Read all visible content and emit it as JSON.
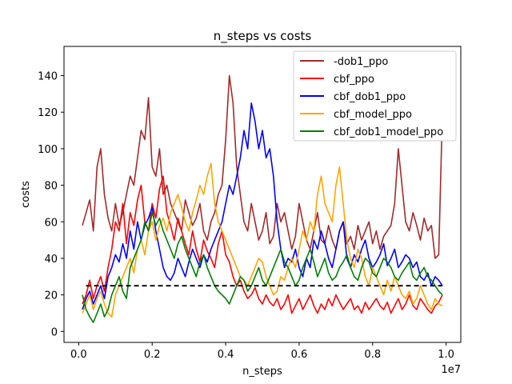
{
  "chart_data": {
    "type": "line",
    "title": "n_steps vs costs",
    "xlabel": "n_steps",
    "ylabel": "costs",
    "x_offset_label": "1e7",
    "xlim": [
      -0.04,
      1.04
    ],
    "ylim": [
      -6,
      156
    ],
    "x_ticks": [
      0.0,
      0.2,
      0.4,
      0.6,
      0.8,
      1.0
    ],
    "x_tick_labels": [
      "0.0",
      "0.2",
      "0.4",
      "0.6",
      "0.8",
      "1.0"
    ],
    "y_ticks": [
      0,
      20,
      40,
      60,
      80,
      100,
      120,
      140
    ],
    "y_tick_labels": [
      "0",
      "20",
      "40",
      "60",
      "80",
      "100",
      "120",
      "140"
    ],
    "grid": false,
    "legend_position": "top-right",
    "threshold": {
      "y": 25,
      "x_range": [
        0.02,
        0.99
      ],
      "color": "#000000",
      "style": "dashed"
    },
    "series": [
      {
        "name": "-dob1_ppo",
        "color": "#a52a2a",
        "x": [
          0.01,
          0.02,
          0.03,
          0.04,
          0.05,
          0.06,
          0.07,
          0.08,
          0.09,
          0.1,
          0.11,
          0.12,
          0.13,
          0.14,
          0.15,
          0.16,
          0.17,
          0.18,
          0.19,
          0.2,
          0.21,
          0.22,
          0.23,
          0.24,
          0.25,
          0.26,
          0.27,
          0.28,
          0.29,
          0.3,
          0.31,
          0.32,
          0.33,
          0.34,
          0.35,
          0.36,
          0.37,
          0.38,
          0.39,
          0.4,
          0.41,
          0.42,
          0.43,
          0.44,
          0.45,
          0.46,
          0.47,
          0.48,
          0.49,
          0.5,
          0.51,
          0.52,
          0.53,
          0.54,
          0.55,
          0.56,
          0.57,
          0.58,
          0.59,
          0.6,
          0.61,
          0.62,
          0.63,
          0.64,
          0.65,
          0.66,
          0.67,
          0.68,
          0.69,
          0.7,
          0.71,
          0.72,
          0.73,
          0.74,
          0.75,
          0.76,
          0.77,
          0.78,
          0.79,
          0.8,
          0.81,
          0.82,
          0.83,
          0.84,
          0.85,
          0.86,
          0.87,
          0.88,
          0.89,
          0.9,
          0.91,
          0.92,
          0.93,
          0.94,
          0.95,
          0.96,
          0.97,
          0.98,
          0.99
        ],
        "values": [
          58,
          65,
          72,
          55,
          90,
          100,
          75,
          62,
          55,
          70,
          58,
          65,
          75,
          85,
          80,
          95,
          110,
          105,
          128,
          90,
          85,
          100,
          75,
          80,
          70,
          65,
          60,
          55,
          72,
          65,
          58,
          62,
          70,
          55,
          50,
          60,
          65,
          75,
          80,
          105,
          140,
          125,
          90,
          75,
          60,
          55,
          70,
          60,
          50,
          55,
          65,
          48,
          52,
          70,
          60,
          65,
          55,
          45,
          52,
          70,
          60,
          50,
          45,
          55,
          65,
          50,
          48,
          58,
          50,
          45,
          55,
          60,
          48,
          52,
          45,
          58,
          50,
          55,
          60,
          48,
          55,
          45,
          52,
          55,
          58,
          70,
          100,
          80,
          60,
          55,
          65,
          58,
          50,
          62,
          55,
          58,
          40,
          42,
          120
        ]
      },
      {
        "name": "cbf_ppo",
        "color": "#ff0000",
        "x": [
          0.01,
          0.02,
          0.03,
          0.04,
          0.05,
          0.06,
          0.07,
          0.08,
          0.09,
          0.1,
          0.11,
          0.12,
          0.13,
          0.14,
          0.15,
          0.16,
          0.17,
          0.18,
          0.19,
          0.2,
          0.21,
          0.22,
          0.23,
          0.24,
          0.25,
          0.26,
          0.27,
          0.28,
          0.29,
          0.3,
          0.31,
          0.32,
          0.33,
          0.34,
          0.35,
          0.36,
          0.37,
          0.38,
          0.39,
          0.4,
          0.41,
          0.42,
          0.43,
          0.44,
          0.45,
          0.46,
          0.47,
          0.48,
          0.49,
          0.5,
          0.51,
          0.52,
          0.53,
          0.54,
          0.55,
          0.56,
          0.57,
          0.58,
          0.59,
          0.6,
          0.61,
          0.62,
          0.63,
          0.64,
          0.65,
          0.66,
          0.67,
          0.68,
          0.69,
          0.7,
          0.71,
          0.72,
          0.73,
          0.74,
          0.75,
          0.76,
          0.77,
          0.78,
          0.79,
          0.8,
          0.81,
          0.82,
          0.83,
          0.84,
          0.85,
          0.86,
          0.87,
          0.88,
          0.89,
          0.9,
          0.91,
          0.92,
          0.93,
          0.94,
          0.95,
          0.96,
          0.97,
          0.98,
          0.99
        ],
        "values": [
          15,
          20,
          28,
          18,
          25,
          30,
          22,
          35,
          45,
          60,
          55,
          70,
          48,
          65,
          58,
          72,
          80,
          60,
          55,
          70,
          62,
          78,
          85,
          65,
          58,
          50,
          62,
          55,
          48,
          42,
          55,
          45,
          38,
          50,
          44,
          40,
          35,
          48,
          55,
          42,
          38,
          30,
          25,
          28,
          22,
          18,
          20,
          24,
          18,
          15,
          20,
          16,
          14,
          18,
          12,
          15,
          20,
          10,
          14,
          18,
          12,
          16,
          20,
          14,
          10,
          15,
          12,
          18,
          14,
          20,
          16,
          12,
          15,
          18,
          12,
          14,
          10,
          16,
          12,
          15,
          18,
          14,
          12,
          16,
          10,
          14,
          18,
          12,
          15,
          20,
          14,
          12,
          18,
          15,
          12,
          10,
          14,
          16,
          20
        ]
      },
      {
        "name": "cbf_dob1_ppo",
        "color": "#0000ff",
        "x": [
          0.01,
          0.02,
          0.03,
          0.04,
          0.05,
          0.06,
          0.07,
          0.08,
          0.09,
          0.1,
          0.11,
          0.12,
          0.13,
          0.14,
          0.15,
          0.16,
          0.17,
          0.18,
          0.19,
          0.2,
          0.21,
          0.22,
          0.23,
          0.24,
          0.25,
          0.26,
          0.27,
          0.28,
          0.29,
          0.3,
          0.31,
          0.32,
          0.33,
          0.34,
          0.35,
          0.36,
          0.37,
          0.38,
          0.39,
          0.4,
          0.41,
          0.42,
          0.43,
          0.44,
          0.45,
          0.46,
          0.47,
          0.48,
          0.49,
          0.5,
          0.51,
          0.52,
          0.53,
          0.54,
          0.55,
          0.56,
          0.57,
          0.58,
          0.59,
          0.6,
          0.61,
          0.62,
          0.63,
          0.64,
          0.65,
          0.66,
          0.67,
          0.68,
          0.69,
          0.7,
          0.71,
          0.72,
          0.73,
          0.74,
          0.75,
          0.76,
          0.77,
          0.78,
          0.79,
          0.8,
          0.81,
          0.82,
          0.83,
          0.84,
          0.85,
          0.86,
          0.87,
          0.88,
          0.89,
          0.9,
          0.91,
          0.92,
          0.93,
          0.94,
          0.95,
          0.96,
          0.97,
          0.98,
          0.99
        ],
        "values": [
          12,
          18,
          22,
          15,
          20,
          25,
          18,
          30,
          35,
          42,
          38,
          48,
          40,
          55,
          45,
          60,
          50,
          58,
          62,
          68,
          55,
          45,
          35,
          30,
          28,
          32,
          40,
          35,
          30,
          38,
          45,
          40,
          35,
          42,
          38,
          45,
          50,
          55,
          60,
          70,
          80,
          75,
          85,
          95,
          110,
          100,
          125,
          115,
          100,
          110,
          95,
          100,
          85,
          60,
          45,
          35,
          40,
          38,
          45,
          35,
          30,
          40,
          35,
          50,
          45,
          55,
          48,
          40,
          35,
          45,
          55,
          60,
          40,
          35,
          42,
          38,
          45,
          50,
          40,
          35,
          38,
          42,
          48,
          36,
          40,
          45,
          35,
          38,
          42,
          40,
          35,
          38,
          30,
          28,
          32,
          25,
          30,
          28,
          25
        ]
      },
      {
        "name": "cbf_model_ppo",
        "color": "#ffa500",
        "x": [
          0.01,
          0.02,
          0.03,
          0.04,
          0.05,
          0.06,
          0.07,
          0.08,
          0.09,
          0.1,
          0.11,
          0.12,
          0.13,
          0.14,
          0.15,
          0.16,
          0.17,
          0.18,
          0.19,
          0.2,
          0.21,
          0.22,
          0.23,
          0.24,
          0.25,
          0.26,
          0.27,
          0.28,
          0.29,
          0.3,
          0.31,
          0.32,
          0.33,
          0.34,
          0.35,
          0.36,
          0.37,
          0.38,
          0.39,
          0.4,
          0.41,
          0.42,
          0.43,
          0.44,
          0.45,
          0.46,
          0.47,
          0.48,
          0.49,
          0.5,
          0.51,
          0.52,
          0.53,
          0.54,
          0.55,
          0.56,
          0.57,
          0.58,
          0.59,
          0.6,
          0.61,
          0.62,
          0.63,
          0.64,
          0.65,
          0.66,
          0.67,
          0.68,
          0.69,
          0.7,
          0.71,
          0.72,
          0.73,
          0.74,
          0.75,
          0.76,
          0.77,
          0.78,
          0.79,
          0.8,
          0.81,
          0.82,
          0.83,
          0.84,
          0.85,
          0.86,
          0.87,
          0.88,
          0.89,
          0.9,
          0.91,
          0.92,
          0.93,
          0.94,
          0.95,
          0.96,
          0.97,
          0.98,
          0.99
        ],
        "values": [
          10,
          15,
          20,
          12,
          18,
          22,
          15,
          10,
          8,
          20,
          25,
          30,
          35,
          40,
          32,
          45,
          50,
          42,
          55,
          60,
          50,
          58,
          62,
          55,
          65,
          70,
          75,
          68,
          60,
          55,
          65,
          72,
          80,
          75,
          85,
          92,
          70,
          60,
          55,
          50,
          45,
          40,
          35,
          30,
          28,
          25,
          30,
          35,
          40,
          38,
          30,
          25,
          20,
          22,
          30,
          28,
          35,
          40,
          35,
          45,
          55,
          50,
          60,
          55,
          75,
          85,
          70,
          65,
          60,
          80,
          90,
          70,
          50,
          40,
          35,
          45,
          40,
          30,
          25,
          35,
          30,
          25,
          20,
          28,
          22,
          30,
          25,
          20,
          18,
          22,
          15,
          18,
          25,
          20,
          15,
          12,
          18,
          15,
          14
        ]
      },
      {
        "name": "cbf_dob1_model_ppo",
        "color": "#008000",
        "x": [
          0.01,
          0.02,
          0.03,
          0.04,
          0.05,
          0.06,
          0.07,
          0.08,
          0.09,
          0.1,
          0.11,
          0.12,
          0.13,
          0.14,
          0.15,
          0.16,
          0.17,
          0.18,
          0.19,
          0.2,
          0.21,
          0.22,
          0.23,
          0.24,
          0.25,
          0.26,
          0.27,
          0.28,
          0.29,
          0.3,
          0.31,
          0.32,
          0.33,
          0.34,
          0.35,
          0.36,
          0.37,
          0.38,
          0.39,
          0.4,
          0.41,
          0.42,
          0.43,
          0.44,
          0.45,
          0.46,
          0.47,
          0.48,
          0.49,
          0.5,
          0.51,
          0.52,
          0.53,
          0.54,
          0.55,
          0.56,
          0.57,
          0.58,
          0.59,
          0.6,
          0.61,
          0.62,
          0.63,
          0.64,
          0.65,
          0.66,
          0.67,
          0.68,
          0.69,
          0.7,
          0.71,
          0.72,
          0.73,
          0.74,
          0.75,
          0.76,
          0.77,
          0.78,
          0.79,
          0.8,
          0.81,
          0.82,
          0.83,
          0.84,
          0.85,
          0.86,
          0.87,
          0.88,
          0.89,
          0.9,
          0.91,
          0.92,
          0.93,
          0.94,
          0.95,
          0.96,
          0.97,
          0.98,
          0.99
        ],
        "values": [
          20,
          12,
          8,
          5,
          10,
          15,
          8,
          12,
          20,
          25,
          30,
          22,
          18,
          35,
          40,
          45,
          50,
          60,
          55,
          65,
          58,
          62,
          55,
          50,
          45,
          40,
          48,
          52,
          45,
          40,
          35,
          30,
          38,
          42,
          35,
          30,
          25,
          22,
          20,
          18,
          15,
          20,
          25,
          30,
          28,
          22,
          25,
          30,
          35,
          28,
          25,
          30,
          35,
          40,
          45,
          38,
          35,
          30,
          25,
          28,
          35,
          40,
          45,
          38,
          30,
          35,
          40,
          32,
          28,
          30,
          35,
          38,
          42,
          35,
          30,
          28,
          35,
          40,
          38,
          32,
          30,
          35,
          40,
          38,
          35,
          30,
          28,
          32,
          35,
          38,
          30,
          28,
          32,
          35,
          30,
          28,
          25,
          22,
          20
        ]
      }
    ]
  }
}
